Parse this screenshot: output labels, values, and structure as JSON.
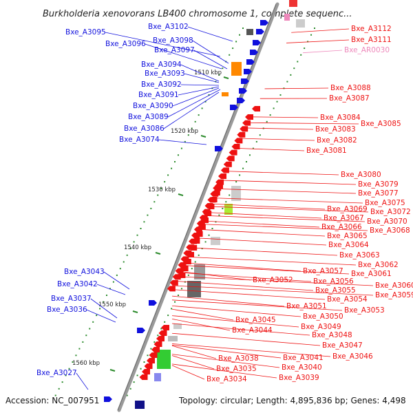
{
  "title": "Burkholderia xenovorans LB400 chromosome 1, complete sequenc...",
  "footer": {
    "accession": "Accession: NC_007951",
    "topology": "Topology: circular; Length: 4,895,836 bp; Genes: 4,498"
  },
  "colors": {
    "forward": "#1010dd",
    "reverse": "#ee1111",
    "rna": "#ee88bb",
    "backbone": "#999999",
    "tick": "#2a8a2a"
  },
  "scale_labels": [
    "1510 kbp",
    "1520 kbp",
    "1530 kbp",
    "1540 kbp",
    "1550 kbp",
    "1560 kbp"
  ],
  "left_labels": [
    "Bxe_A3095",
    "Bxe_A3102",
    "Bxe_A3096",
    "Bxe_A3098",
    "Bxe_A3097",
    "Bxe_A3094",
    "Bxe_A3093",
    "Bxe_A3092",
    "Bxe_A3091",
    "Bxe_A3090",
    "Bxe_A3089",
    "Bxe_A3086",
    "Bxe_A3074",
    "Bxe_A3043",
    "Bxe_A3042",
    "Bxe_A3037",
    "Bxe_A3036",
    "Bxe_A3027"
  ],
  "right_labels": [
    "Bxe_A3112",
    "Bxe_A3111",
    "Bxe_AR0030",
    "Bxe_A3088",
    "Bxe_A3087",
    "Bxe_A3084",
    "Bxe_A3085",
    "Bxe_A3083",
    "Bxe_A3082",
    "Bxe_A3081",
    "Bxe_A3080",
    "Bxe_A3079",
    "Bxe_A3077",
    "Bxe_A3075",
    "Bxe_A3069",
    "Bxe_A3072",
    "Bxe_A3067",
    "Bxe_A3070",
    "Bxe_A3066",
    "Bxe_A3068",
    "Bxe_A3065",
    "Bxe_A3064",
    "Bxe_A3063",
    "Bxe_A3062",
    "Bxe_A3057",
    "Bxe_A3061",
    "Bxe_A3052",
    "Bxe_A3056",
    "Bxe_A3060",
    "Bxe_A3055",
    "Bxe_A3059",
    "Bxe_A3054",
    "Bxe_A3051",
    "Bxe_A3053",
    "Bxe_A3050",
    "Bxe_A3045",
    "Bxe_A3049",
    "Bxe_A3044",
    "Bxe_A3048",
    "Bxe_A3047",
    "Bxe_A3046",
    "Bxe_A3038",
    "Bxe_A3041",
    "Bxe_A3035",
    "Bxe_A3040",
    "Bxe_A3034",
    "Bxe_A3039"
  ]
}
